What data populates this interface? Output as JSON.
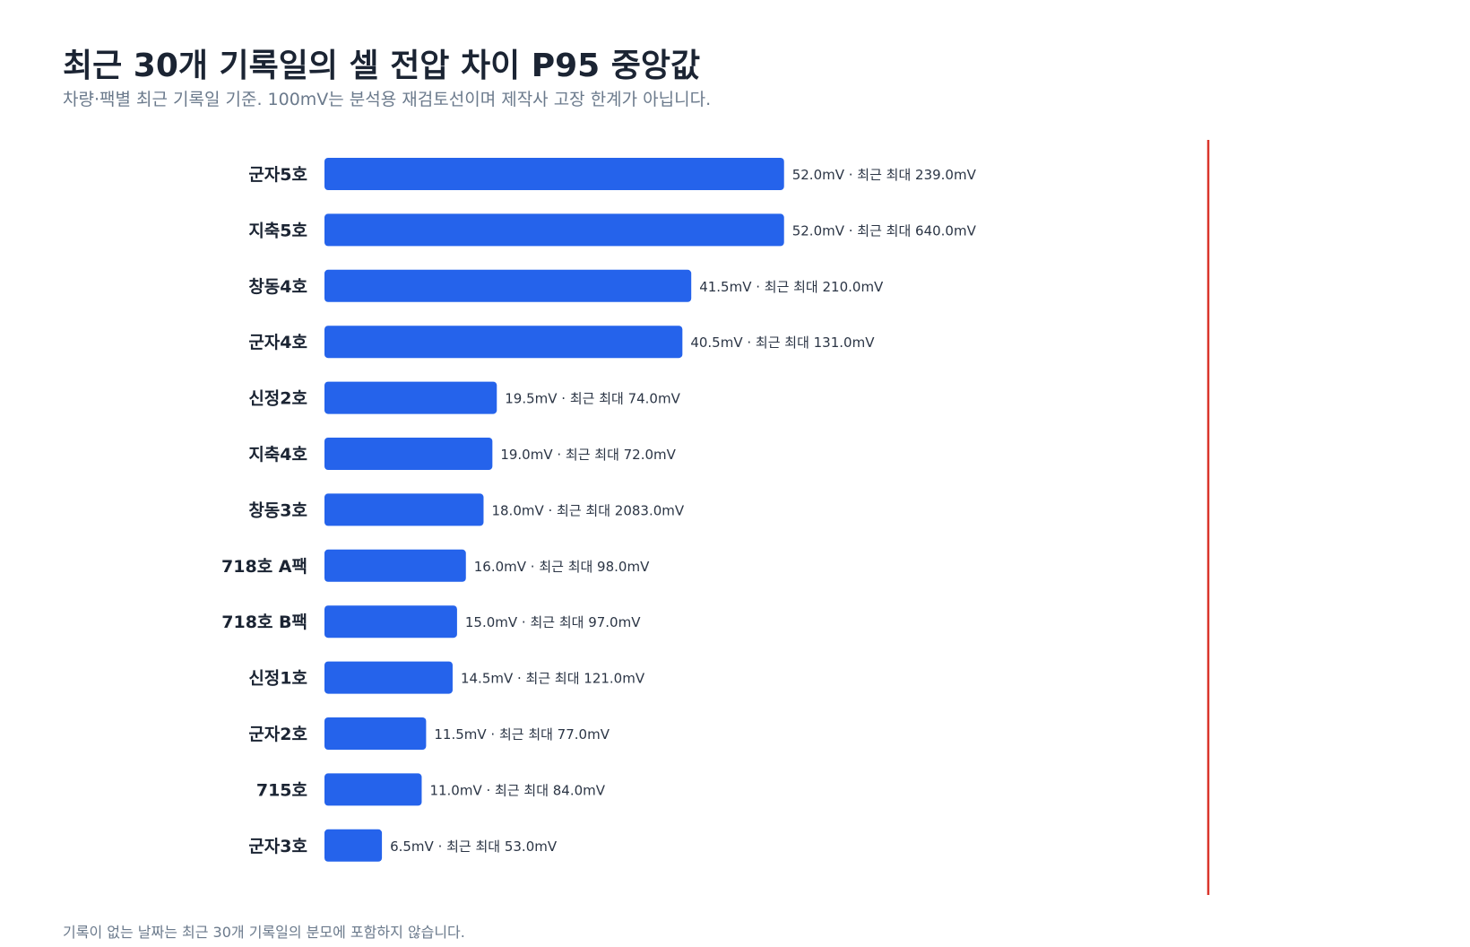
{
  "title": "최근 30개 기록일의 셀 전압 차이 P95 중앙값",
  "subtitle": "차량·팩별 최근 기록일 기준. 100mV는 분석용 재검토선이며 제작사 고장 한계가 아닙니다.",
  "footnote": "기록이 없는 날짜는 최근 30개 기록일의 분모에 포함하지 않습니다.",
  "colors": {
    "bar": "#2563eb",
    "threshold_line": "#d9352b",
    "title": "#1b2433",
    "muted_text": "#6b7a8c"
  },
  "chart_data": {
    "type": "bar",
    "orientation": "horizontal",
    "unit": "mV",
    "categories": [
      "군자5호",
      "지축5호",
      "창동4호",
      "군자4호",
      "신정2호",
      "지축4호",
      "창동3호",
      "718호 A팩",
      "718호 B팩",
      "신정1호",
      "군자2호",
      "715호",
      "군자3호"
    ],
    "values": [
      52.0,
      52.0,
      41.5,
      40.5,
      19.5,
      19.0,
      18.0,
      16.0,
      15.0,
      14.5,
      11.5,
      11.0,
      6.5
    ],
    "value_labels": [
      "52.0mV · 최근 최대 239.0mV",
      "52.0mV · 최근 최대 640.0mV",
      "41.5mV · 최근 최대 210.0mV",
      "40.5mV · 최근 최대 131.0mV",
      "19.5mV · 최근 최대 74.0mV",
      "19.0mV · 최근 최대 72.0mV",
      "18.0mV · 최근 최대 2083.0mV",
      "16.0mV · 최근 최대 98.0mV",
      "15.0mV · 최근 최대 97.0mV",
      "14.5mV · 최근 최대 121.0mV",
      "11.5mV · 최근 최대 77.0mV",
      "11.0mV · 최근 최대 84.0mV",
      "6.5mV · 최근 최대 53.0mV"
    ],
    "xlim": [
      0,
      100
    ],
    "threshold": 100,
    "grid": false
  }
}
